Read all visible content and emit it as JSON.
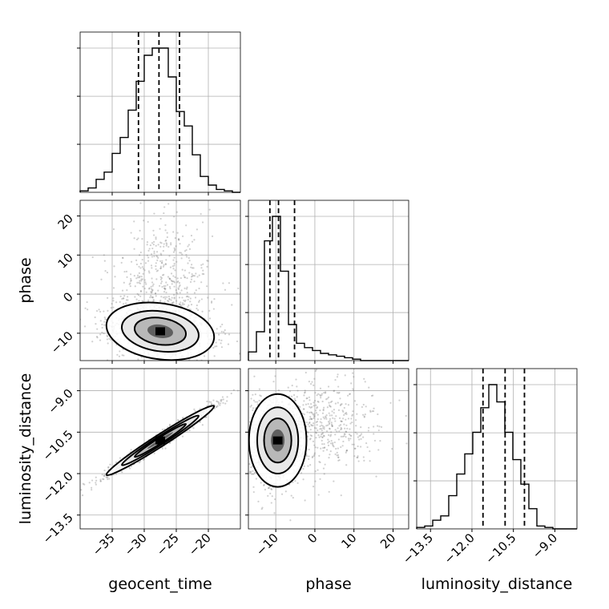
{
  "chart_data": {
    "type": "corner",
    "parameters": [
      {
        "name": "geocent_time",
        "label": "geocent_time",
        "range": [
          -40,
          -15
        ],
        "ticks": [
          -35,
          -30,
          -25,
          -20
        ],
        "quantiles": [
          -30.9,
          -27.7,
          -24.5
        ],
        "hist": [
          0.01,
          0.03,
          0.09,
          0.14,
          0.27,
          0.38,
          0.57,
          0.77,
          0.95,
          1.0,
          1.0,
          0.8,
          0.56,
          0.46,
          0.26,
          0.11,
          0.05,
          0.02,
          0.01,
          0.0
        ]
      },
      {
        "name": "phase",
        "label": "phase",
        "range": [
          -17,
          24
        ],
        "ticks": [
          -10,
          0,
          10,
          20
        ],
        "quantiles": [
          -11.5,
          -9.3,
          -5.2
        ],
        "hist": [
          0.06,
          0.2,
          0.83,
          1.0,
          0.62,
          0.25,
          0.12,
          0.09,
          0.07,
          0.05,
          0.04,
          0.03,
          0.02,
          0.01,
          0.0,
          0.0,
          0.0,
          0.0,
          0.0,
          0.0
        ]
      },
      {
        "name": "luminosity_distance",
        "label": "luminosity_distance",
        "range": [
          -14.0,
          -8.2
        ],
        "ticks": [
          -13.5,
          -12.0,
          -10.5,
          -9.0
        ],
        "quantiles": [
          -11.6,
          -10.8,
          -10.1
        ],
        "hist": [
          0.01,
          0.02,
          0.06,
          0.09,
          0.23,
          0.38,
          0.52,
          0.67,
          0.84,
          1.0,
          0.88,
          0.67,
          0.48,
          0.31,
          0.14,
          0.02,
          0.01,
          0.0,
          0.0,
          0.0
        ]
      }
    ],
    "pairs": [
      {
        "x": "geocent_time",
        "y": "phase",
        "center": [
          -27.5,
          -9.5
        ],
        "sd": [
          4,
          3.5
        ],
        "corr": -0.2,
        "tail": {
          "center": [
            -27,
            3
          ],
          "sd": [
            4,
            8
          ]
        }
      },
      {
        "x": "geocent_time",
        "y": "luminosity_distance",
        "center": [
          -27.5,
          -10.8
        ],
        "sd": [
          4,
          0.6
        ],
        "corr": 0.98
      },
      {
        "x": "phase",
        "y": "luminosity_distance",
        "center": [
          -9.5,
          -10.8
        ],
        "sd": [
          3.5,
          0.8
        ],
        "corr": 0.0,
        "tail": {
          "center": [
            2,
            -10.2
          ],
          "sd": [
            7,
            0.8
          ]
        }
      }
    ],
    "grid": true,
    "quantiles_style": "dashed"
  }
}
